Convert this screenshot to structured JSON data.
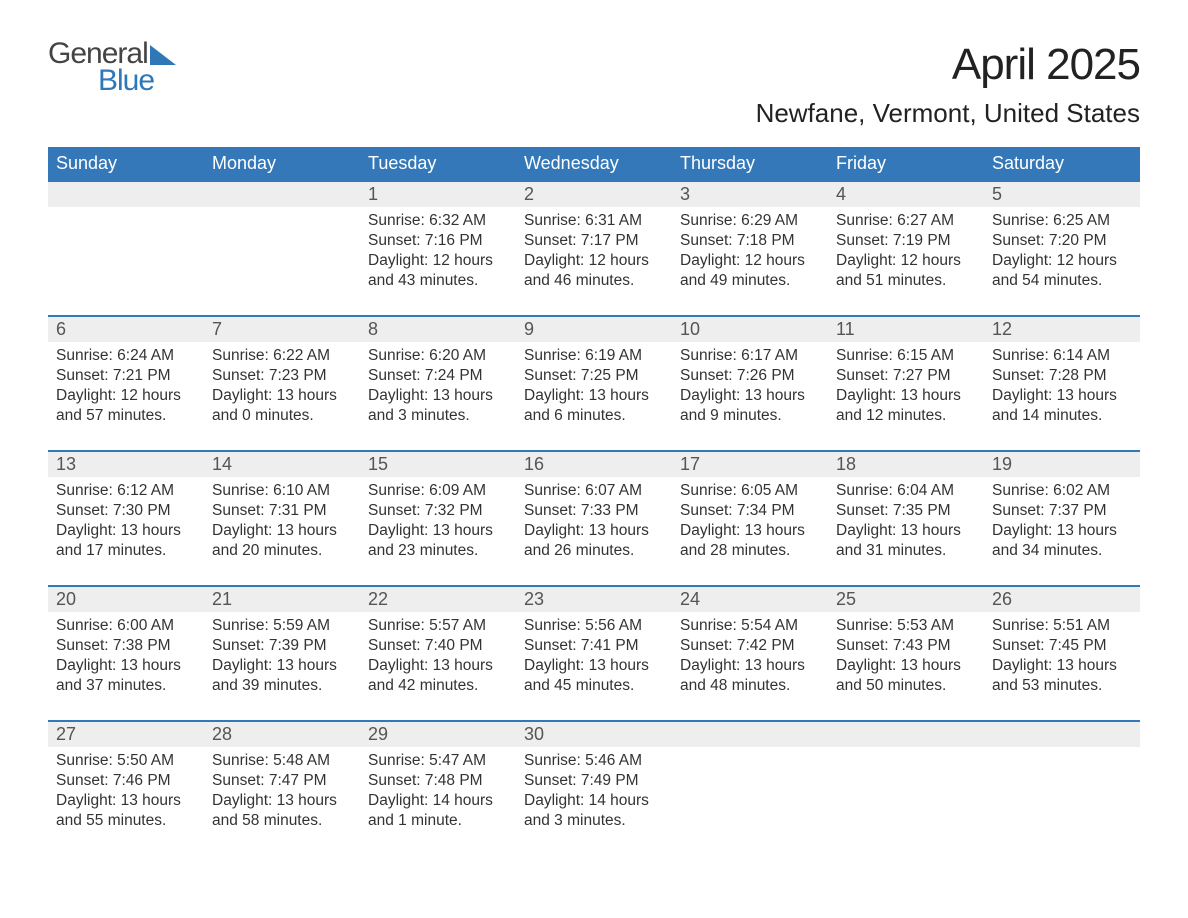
{
  "logo": {
    "word1": "General",
    "word2": "Blue"
  },
  "title": "April 2025",
  "location": "Newfane, Vermont, United States",
  "styling": {
    "header_bg": "#3478b9",
    "header_text": "#ffffff",
    "number_row_bg": "#eeeeee",
    "week_border": "#3478b9",
    "body_text": "#333333",
    "title_fontsize": 44,
    "location_fontsize": 26,
    "day_header_fontsize": 18,
    "cell_fontsize": 15.5,
    "page_bg": "#ffffff",
    "logo_sail_color": "#2f78b8",
    "columns": 7
  },
  "day_names": [
    "Sunday",
    "Monday",
    "Tuesday",
    "Wednesday",
    "Thursday",
    "Friday",
    "Saturday"
  ],
  "weeks": [
    {
      "days": [
        {
          "num": "",
          "sunrise": "",
          "sunset": "",
          "daylight1": "",
          "daylight2": ""
        },
        {
          "num": "",
          "sunrise": "",
          "sunset": "",
          "daylight1": "",
          "daylight2": ""
        },
        {
          "num": "1",
          "sunrise": "Sunrise: 6:32 AM",
          "sunset": "Sunset: 7:16 PM",
          "daylight1": "Daylight: 12 hours",
          "daylight2": "and 43 minutes."
        },
        {
          "num": "2",
          "sunrise": "Sunrise: 6:31 AM",
          "sunset": "Sunset: 7:17 PM",
          "daylight1": "Daylight: 12 hours",
          "daylight2": "and 46 minutes."
        },
        {
          "num": "3",
          "sunrise": "Sunrise: 6:29 AM",
          "sunset": "Sunset: 7:18 PM",
          "daylight1": "Daylight: 12 hours",
          "daylight2": "and 49 minutes."
        },
        {
          "num": "4",
          "sunrise": "Sunrise: 6:27 AM",
          "sunset": "Sunset: 7:19 PM",
          "daylight1": "Daylight: 12 hours",
          "daylight2": "and 51 minutes."
        },
        {
          "num": "5",
          "sunrise": "Sunrise: 6:25 AM",
          "sunset": "Sunset: 7:20 PM",
          "daylight1": "Daylight: 12 hours",
          "daylight2": "and 54 minutes."
        }
      ]
    },
    {
      "days": [
        {
          "num": "6",
          "sunrise": "Sunrise: 6:24 AM",
          "sunset": "Sunset: 7:21 PM",
          "daylight1": "Daylight: 12 hours",
          "daylight2": "and 57 minutes."
        },
        {
          "num": "7",
          "sunrise": "Sunrise: 6:22 AM",
          "sunset": "Sunset: 7:23 PM",
          "daylight1": "Daylight: 13 hours",
          "daylight2": "and 0 minutes."
        },
        {
          "num": "8",
          "sunrise": "Sunrise: 6:20 AM",
          "sunset": "Sunset: 7:24 PM",
          "daylight1": "Daylight: 13 hours",
          "daylight2": "and 3 minutes."
        },
        {
          "num": "9",
          "sunrise": "Sunrise: 6:19 AM",
          "sunset": "Sunset: 7:25 PM",
          "daylight1": "Daylight: 13 hours",
          "daylight2": "and 6 minutes."
        },
        {
          "num": "10",
          "sunrise": "Sunrise: 6:17 AM",
          "sunset": "Sunset: 7:26 PM",
          "daylight1": "Daylight: 13 hours",
          "daylight2": "and 9 minutes."
        },
        {
          "num": "11",
          "sunrise": "Sunrise: 6:15 AM",
          "sunset": "Sunset: 7:27 PM",
          "daylight1": "Daylight: 13 hours",
          "daylight2": "and 12 minutes."
        },
        {
          "num": "12",
          "sunrise": "Sunrise: 6:14 AM",
          "sunset": "Sunset: 7:28 PM",
          "daylight1": "Daylight: 13 hours",
          "daylight2": "and 14 minutes."
        }
      ]
    },
    {
      "days": [
        {
          "num": "13",
          "sunrise": "Sunrise: 6:12 AM",
          "sunset": "Sunset: 7:30 PM",
          "daylight1": "Daylight: 13 hours",
          "daylight2": "and 17 minutes."
        },
        {
          "num": "14",
          "sunrise": "Sunrise: 6:10 AM",
          "sunset": "Sunset: 7:31 PM",
          "daylight1": "Daylight: 13 hours",
          "daylight2": "and 20 minutes."
        },
        {
          "num": "15",
          "sunrise": "Sunrise: 6:09 AM",
          "sunset": "Sunset: 7:32 PM",
          "daylight1": "Daylight: 13 hours",
          "daylight2": "and 23 minutes."
        },
        {
          "num": "16",
          "sunrise": "Sunrise: 6:07 AM",
          "sunset": "Sunset: 7:33 PM",
          "daylight1": "Daylight: 13 hours",
          "daylight2": "and 26 minutes."
        },
        {
          "num": "17",
          "sunrise": "Sunrise: 6:05 AM",
          "sunset": "Sunset: 7:34 PM",
          "daylight1": "Daylight: 13 hours",
          "daylight2": "and 28 minutes."
        },
        {
          "num": "18",
          "sunrise": "Sunrise: 6:04 AM",
          "sunset": "Sunset: 7:35 PM",
          "daylight1": "Daylight: 13 hours",
          "daylight2": "and 31 minutes."
        },
        {
          "num": "19",
          "sunrise": "Sunrise: 6:02 AM",
          "sunset": "Sunset: 7:37 PM",
          "daylight1": "Daylight: 13 hours",
          "daylight2": "and 34 minutes."
        }
      ]
    },
    {
      "days": [
        {
          "num": "20",
          "sunrise": "Sunrise: 6:00 AM",
          "sunset": "Sunset: 7:38 PM",
          "daylight1": "Daylight: 13 hours",
          "daylight2": "and 37 minutes."
        },
        {
          "num": "21",
          "sunrise": "Sunrise: 5:59 AM",
          "sunset": "Sunset: 7:39 PM",
          "daylight1": "Daylight: 13 hours",
          "daylight2": "and 39 minutes."
        },
        {
          "num": "22",
          "sunrise": "Sunrise: 5:57 AM",
          "sunset": "Sunset: 7:40 PM",
          "daylight1": "Daylight: 13 hours",
          "daylight2": "and 42 minutes."
        },
        {
          "num": "23",
          "sunrise": "Sunrise: 5:56 AM",
          "sunset": "Sunset: 7:41 PM",
          "daylight1": "Daylight: 13 hours",
          "daylight2": "and 45 minutes."
        },
        {
          "num": "24",
          "sunrise": "Sunrise: 5:54 AM",
          "sunset": "Sunset: 7:42 PM",
          "daylight1": "Daylight: 13 hours",
          "daylight2": "and 48 minutes."
        },
        {
          "num": "25",
          "sunrise": "Sunrise: 5:53 AM",
          "sunset": "Sunset: 7:43 PM",
          "daylight1": "Daylight: 13 hours",
          "daylight2": "and 50 minutes."
        },
        {
          "num": "26",
          "sunrise": "Sunrise: 5:51 AM",
          "sunset": "Sunset: 7:45 PM",
          "daylight1": "Daylight: 13 hours",
          "daylight2": "and 53 minutes."
        }
      ]
    },
    {
      "days": [
        {
          "num": "27",
          "sunrise": "Sunrise: 5:50 AM",
          "sunset": "Sunset: 7:46 PM",
          "daylight1": "Daylight: 13 hours",
          "daylight2": "and 55 minutes."
        },
        {
          "num": "28",
          "sunrise": "Sunrise: 5:48 AM",
          "sunset": "Sunset: 7:47 PM",
          "daylight1": "Daylight: 13 hours",
          "daylight2": "and 58 minutes."
        },
        {
          "num": "29",
          "sunrise": "Sunrise: 5:47 AM",
          "sunset": "Sunset: 7:48 PM",
          "daylight1": "Daylight: 14 hours",
          "daylight2": "and 1 minute."
        },
        {
          "num": "30",
          "sunrise": "Sunrise: 5:46 AM",
          "sunset": "Sunset: 7:49 PM",
          "daylight1": "Daylight: 14 hours",
          "daylight2": "and 3 minutes."
        },
        {
          "num": "",
          "sunrise": "",
          "sunset": "",
          "daylight1": "",
          "daylight2": ""
        },
        {
          "num": "",
          "sunrise": "",
          "sunset": "",
          "daylight1": "",
          "daylight2": ""
        },
        {
          "num": "",
          "sunrise": "",
          "sunset": "",
          "daylight1": "",
          "daylight2": ""
        }
      ]
    }
  ]
}
